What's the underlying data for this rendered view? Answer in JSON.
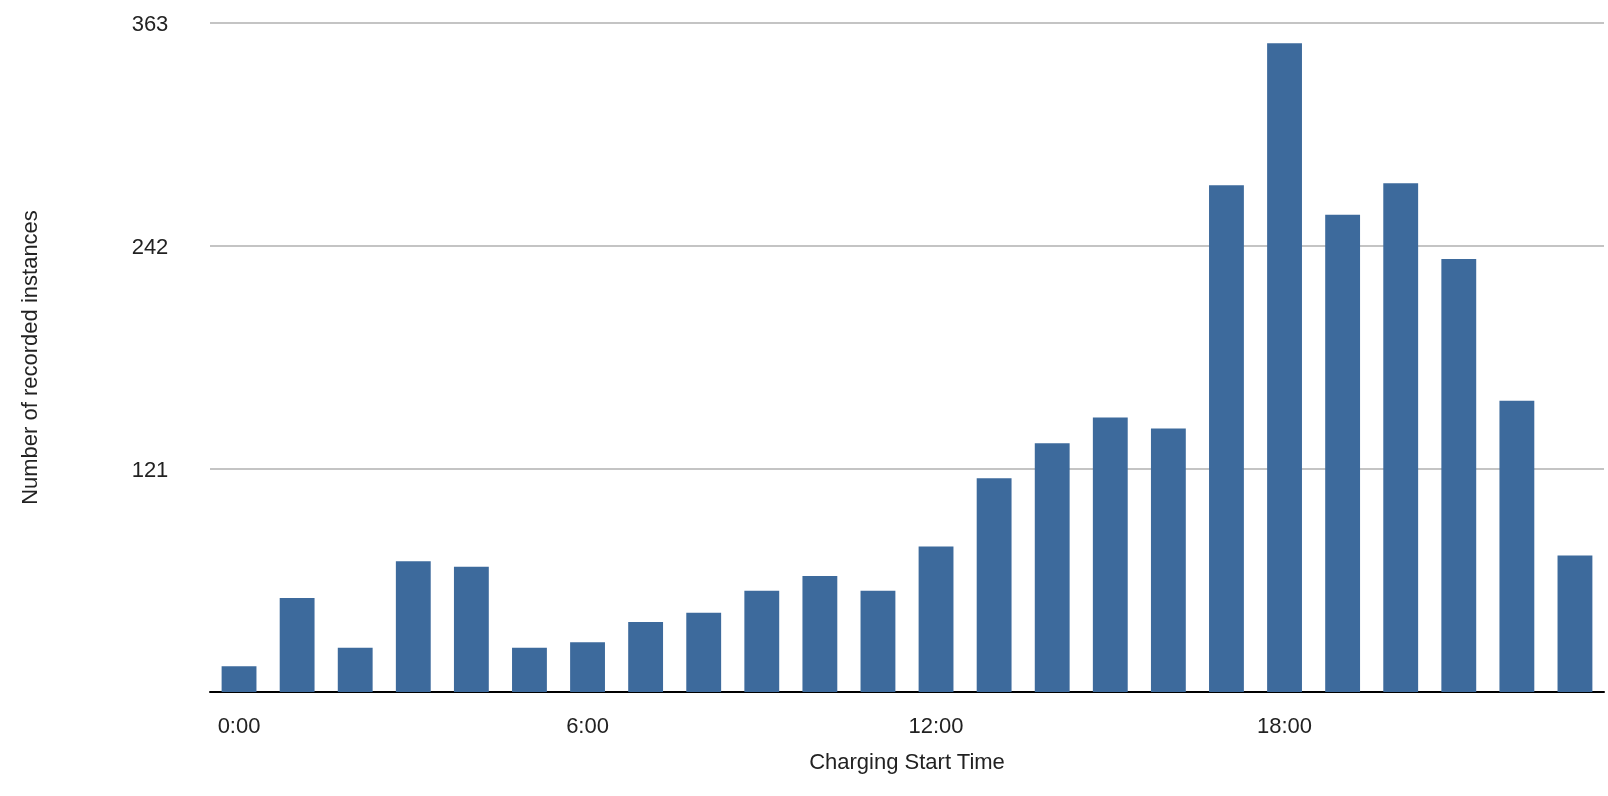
{
  "chart_data": {
    "type": "bar",
    "xlabel": "Charging Start Time",
    "ylabel": "Number of recorded instances",
    "categories": [
      "0:00",
      null,
      null,
      null,
      null,
      null,
      "6:00",
      null,
      null,
      null,
      null,
      null,
      "12:00",
      null,
      null,
      null,
      null,
      null,
      "18:00",
      null,
      null,
      null,
      null,
      null
    ],
    "values": [
      14,
      51,
      24,
      71,
      68,
      24,
      27,
      38,
      43,
      55,
      63,
      55,
      79,
      116,
      135,
      149,
      143,
      275,
      352,
      259,
      276,
      235,
      158,
      74
    ],
    "color": "#3d6a9c",
    "ylim": [
      0,
      363
    ],
    "yticks": [
      {
        "value": 0,
        "label": null
      },
      121,
      242,
      363
    ],
    "grid": "y"
  }
}
